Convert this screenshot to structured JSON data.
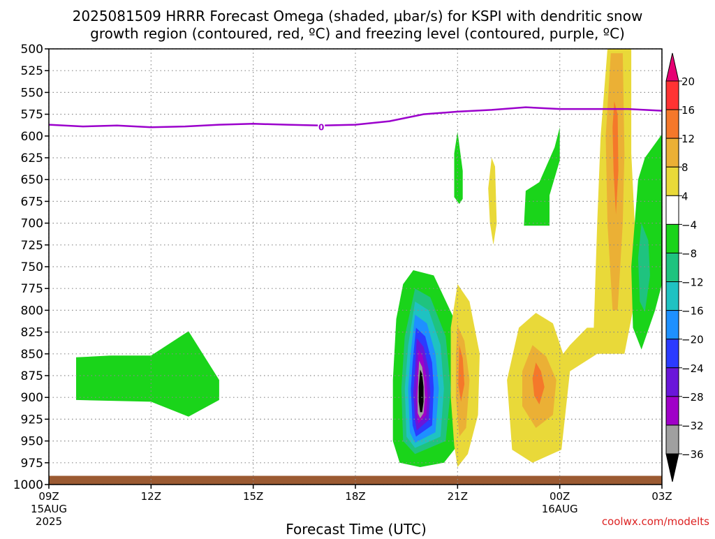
{
  "title_line1": "2025081509 HRRR Forecast Omega (shaded, μbar/s) for KSPI with dendritic snow",
  "title_line2": "growth region (contoured, red, ºC) and freezing level (contoured, purple, ºC)",
  "xlabel": "Forecast Time (UTC)",
  "watermark": "coolwx.com/modelts",
  "colors": {
    "freezing_level": "#9b00cc",
    "ground": "#9b5a32",
    "grid": "#8a8a8a"
  },
  "chart_data": {
    "type": "heatmap",
    "y_axis": {
      "label": "",
      "scale": "pressure (inverted)",
      "range_hPa": [
        1000,
        500
      ],
      "ticks": [
        "500",
        "525",
        "550",
        "575",
        "600",
        "625",
        "650",
        "675",
        "700",
        "725",
        "750",
        "775",
        "800",
        "825",
        "850",
        "875",
        "900",
        "925",
        "950",
        "975",
        "1000"
      ]
    },
    "x_axis": {
      "range_hours_from_09Z": [
        0,
        18
      ],
      "ticks": [
        {
          "h": 0,
          "label": "09Z",
          "sub1": "15AUG",
          "sub2": "2025"
        },
        {
          "h": 3,
          "label": "12Z",
          "sub1": "",
          "sub2": ""
        },
        {
          "h": 6,
          "label": "15Z",
          "sub1": "",
          "sub2": ""
        },
        {
          "h": 9,
          "label": "18Z",
          "sub1": "",
          "sub2": ""
        },
        {
          "h": 12,
          "label": "21Z",
          "sub1": "",
          "sub2": ""
        },
        {
          "h": 15,
          "label": "00Z",
          "sub1": "16AUG",
          "sub2": ""
        },
        {
          "h": 18,
          "label": "03Z",
          "sub1": "",
          "sub2": ""
        }
      ]
    },
    "grid": true,
    "colorbar": {
      "labels": [
        "20",
        "16",
        "12",
        "8",
        "4",
        "-4",
        "-8",
        "-12",
        "-16",
        "-20",
        "-24",
        "-28",
        "-32",
        "-36"
      ],
      "bins": [
        {
          "min": 20,
          "max": null,
          "color": "#e60073"
        },
        {
          "min": 16,
          "max": 20,
          "color": "#ff3333"
        },
        {
          "min": 12,
          "max": 16,
          "color": "#f5782a"
        },
        {
          "min": 8,
          "max": 12,
          "color": "#ebb035"
        },
        {
          "min": 4,
          "max": 8,
          "color": "#e9d939"
        },
        {
          "min": -4,
          "max": 4,
          "color": "#ffffff"
        },
        {
          "min": -8,
          "max": -4,
          "color": "#1ad41a"
        },
        {
          "min": -12,
          "max": -8,
          "color": "#1fc37f"
        },
        {
          "min": -16,
          "max": -12,
          "color": "#1fc2c2"
        },
        {
          "min": -20,
          "max": -16,
          "color": "#1e90ff"
        },
        {
          "min": -24,
          "max": -20,
          "color": "#2b3bff"
        },
        {
          "min": -28,
          "max": -24,
          "color": "#6a16d9"
        },
        {
          "min": -32,
          "max": -28,
          "color": "#a000c8"
        },
        {
          "min": -36,
          "max": -32,
          "color": "#a0a0a0"
        },
        {
          "min": null,
          "max": -36,
          "color": "#000000"
        }
      ]
    },
    "freezing_level": {
      "contour_label": "0",
      "label_at": [
        8.0,
        591
      ],
      "points": [
        [
          0,
          587
        ],
        [
          1,
          589
        ],
        [
          2,
          588
        ],
        [
          3,
          590
        ],
        [
          4,
          589
        ],
        [
          5,
          587
        ],
        [
          6,
          586
        ],
        [
          7,
          587
        ],
        [
          8,
          588
        ],
        [
          9,
          587
        ],
        [
          10,
          583
        ],
        [
          11,
          575
        ],
        [
          12,
          572
        ],
        [
          13,
          570
        ],
        [
          14,
          567
        ],
        [
          15,
          569
        ],
        [
          16,
          569
        ],
        [
          17,
          569
        ],
        [
          18,
          571
        ]
      ]
    },
    "shaded_regions": [
      {
        "name": "low-level-weak-ascent",
        "bin": "-8 to -4",
        "color": "#1ad41a",
        "polygon": [
          [
            0.8,
            854
          ],
          [
            1.8,
            852
          ],
          [
            3.0,
            852
          ],
          [
            4.1,
            824
          ],
          [
            5.0,
            880
          ],
          [
            5.0,
            903
          ],
          [
            4.1,
            922
          ],
          [
            3.0,
            905
          ],
          [
            0.8,
            903
          ]
        ]
      },
      {
        "name": "deep-ascent-outer",
        "bin": "-8 to -4",
        "color": "#1ad41a",
        "polygon": [
          [
            10.7,
            754
          ],
          [
            11.3,
            760
          ],
          [
            11.9,
            810
          ],
          [
            12.1,
            880
          ],
          [
            12.1,
            950
          ],
          [
            11.6,
            975
          ],
          [
            10.9,
            980
          ],
          [
            10.3,
            975
          ],
          [
            10.1,
            950
          ],
          [
            10.1,
            880
          ],
          [
            10.2,
            810
          ],
          [
            10.4,
            770
          ]
        ]
      },
      {
        "name": "deep-ascent-2",
        "bin": "-12 to -8",
        "color": "#1fc37f",
        "polygon": [
          [
            10.75,
            775
          ],
          [
            11.2,
            785
          ],
          [
            11.65,
            830
          ],
          [
            11.8,
            890
          ],
          [
            11.65,
            950
          ],
          [
            10.75,
            965
          ],
          [
            10.4,
            950
          ],
          [
            10.35,
            890
          ],
          [
            10.45,
            830
          ]
        ]
      },
      {
        "name": "deep-ascent-3",
        "bin": "-16 to -12",
        "color": "#1fc2c2",
        "polygon": [
          [
            10.75,
            790
          ],
          [
            11.15,
            800
          ],
          [
            11.5,
            840
          ],
          [
            11.6,
            890
          ],
          [
            11.5,
            945
          ],
          [
            10.75,
            958
          ],
          [
            10.5,
            945
          ],
          [
            10.45,
            890
          ],
          [
            10.55,
            840
          ]
        ]
      },
      {
        "name": "deep-ascent-4",
        "bin": "-20 to -16",
        "color": "#1e90ff",
        "polygon": [
          [
            10.75,
            805
          ],
          [
            11.1,
            815
          ],
          [
            11.35,
            850
          ],
          [
            11.45,
            890
          ],
          [
            11.35,
            940
          ],
          [
            10.75,
            952
          ],
          [
            10.6,
            940
          ],
          [
            10.55,
            890
          ],
          [
            10.62,
            850
          ]
        ]
      },
      {
        "name": "deep-ascent-5",
        "bin": "-24 to -20",
        "color": "#2b3bff",
        "polygon": [
          [
            10.78,
            820
          ],
          [
            11.05,
            830
          ],
          [
            11.25,
            860
          ],
          [
            11.3,
            890
          ],
          [
            11.25,
            932
          ],
          [
            10.78,
            945
          ],
          [
            10.68,
            932
          ],
          [
            10.63,
            890
          ],
          [
            10.68,
            860
          ]
        ]
      },
      {
        "name": "deep-ascent-6",
        "bin": "-28 to -24",
        "color": "#6a16d9",
        "polygon": [
          [
            10.8,
            832
          ],
          [
            11.0,
            842
          ],
          [
            11.15,
            868
          ],
          [
            11.2,
            895
          ],
          [
            11.15,
            926
          ],
          [
            10.8,
            938
          ],
          [
            10.75,
            926
          ],
          [
            10.7,
            895
          ],
          [
            10.75,
            868
          ]
        ]
      },
      {
        "name": "deep-ascent-7",
        "bin": "-32 to -28",
        "color": "#a000c8",
        "polygon": [
          [
            10.85,
            845
          ],
          [
            10.97,
            852
          ],
          [
            11.08,
            875
          ],
          [
            11.12,
            898
          ],
          [
            11.08,
            920
          ],
          [
            10.85,
            930
          ],
          [
            10.8,
            920
          ],
          [
            10.78,
            898
          ],
          [
            10.8,
            875
          ]
        ]
      },
      {
        "name": "deep-ascent-8",
        "bin": "-36 to -32",
        "color": "#a0a0a0",
        "polygon": [
          [
            10.87,
            858
          ],
          [
            10.96,
            865
          ],
          [
            11.02,
            882
          ],
          [
            11.04,
            900
          ],
          [
            11.0,
            918
          ],
          [
            10.9,
            924
          ],
          [
            10.83,
            918
          ],
          [
            10.82,
            900
          ],
          [
            10.84,
            882
          ]
        ]
      },
      {
        "name": "deep-ascent-core",
        "bin": "< -36",
        "color": "#000000",
        "polygon": [
          [
            10.9,
            868
          ],
          [
            10.96,
            873
          ],
          [
            11.0,
            888
          ],
          [
            11.0,
            905
          ],
          [
            10.96,
            917
          ],
          [
            10.9,
            917
          ],
          [
            10.86,
            905
          ],
          [
            10.86,
            888
          ]
        ]
      },
      {
        "name": "mid-descent-a",
        "bin": "4 to 8",
        "color": "#e9d939",
        "polygon": [
          [
            12.0,
            770
          ],
          [
            12.35,
            790
          ],
          [
            12.65,
            850
          ],
          [
            12.6,
            920
          ],
          [
            12.3,
            965
          ],
          [
            12.0,
            980
          ],
          [
            11.9,
            955
          ],
          [
            11.8,
            900
          ],
          [
            11.8,
            820
          ]
        ]
      },
      {
        "name": "mid-descent-a-core",
        "bin": "8 to 12",
        "color": "#ebb035",
        "polygon": [
          [
            12.0,
            818
          ],
          [
            12.2,
            835
          ],
          [
            12.35,
            880
          ],
          [
            12.25,
            935
          ],
          [
            12.05,
            945
          ],
          [
            11.95,
            900
          ],
          [
            11.95,
            850
          ]
        ]
      },
      {
        "name": "mid-descent-a-peak",
        "bin": "12 to 16",
        "color": "#f5782a",
        "polygon": [
          [
            12.05,
            840
          ],
          [
            12.15,
            855
          ],
          [
            12.2,
            885
          ],
          [
            12.1,
            905
          ],
          [
            12.02,
            885
          ]
        ]
      },
      {
        "name": "upper-green-a",
        "bin": "-8 to -4",
        "color": "#1ad41a",
        "polygon": [
          [
            11.9,
            620
          ],
          [
            12.0,
            595
          ],
          [
            12.15,
            640
          ],
          [
            12.15,
            672
          ],
          [
            12.05,
            678
          ],
          [
            11.9,
            670
          ]
        ]
      },
      {
        "name": "upper-yellow-thin",
        "bin": "4 to 8",
        "color": "#e9d939",
        "polygon": [
          [
            13.0,
            625
          ],
          [
            13.1,
            635
          ],
          [
            13.15,
            700
          ],
          [
            13.05,
            725
          ],
          [
            12.95,
            700
          ],
          [
            12.9,
            660
          ]
        ]
      },
      {
        "name": "upper-green-b",
        "bin": "-8 to -4",
        "color": "#1ad41a",
        "polygon": [
          [
            14.0,
            663
          ],
          [
            14.4,
            653
          ],
          [
            14.85,
            613
          ],
          [
            15.0,
            590
          ],
          [
            15.0,
            628
          ],
          [
            14.7,
            668
          ],
          [
            14.7,
            703
          ],
          [
            13.95,
            703
          ]
        ]
      },
      {
        "name": "tall-descent-column",
        "bin": "4 to 8",
        "color": "#e9d939",
        "polygon": [
          [
            16.4,
            500
          ],
          [
            17.1,
            500
          ],
          [
            17.1,
            620
          ],
          [
            17.2,
            700
          ],
          [
            17.15,
            800
          ],
          [
            16.9,
            850
          ],
          [
            16.1,
            850
          ],
          [
            15.3,
            870
          ],
          [
            15.05,
            960
          ],
          [
            14.2,
            975
          ],
          [
            13.6,
            960
          ],
          [
            13.45,
            880
          ],
          [
            13.8,
            820
          ],
          [
            14.3,
            803
          ],
          [
            14.8,
            815
          ],
          [
            15.1,
            850
          ],
          [
            15.3,
            840
          ],
          [
            15.8,
            820
          ],
          [
            16.0,
            820
          ],
          [
            16.1,
            700
          ],
          [
            16.2,
            600
          ]
        ]
      },
      {
        "name": "tall-descent-core",
        "bin": "8 to 12",
        "color": "#ebb035",
        "polygon": [
          [
            16.5,
            505
          ],
          [
            16.85,
            505
          ],
          [
            16.9,
            620
          ],
          [
            16.85,
            700
          ],
          [
            16.7,
            800
          ],
          [
            16.55,
            800
          ],
          [
            16.4,
            700
          ],
          [
            16.35,
            600
          ]
        ]
      },
      {
        "name": "tall-descent-peak",
        "bin": "12 to 16",
        "color": "#f5782a",
        "polygon": [
          [
            16.6,
            560
          ],
          [
            16.7,
            575
          ],
          [
            16.72,
            640
          ],
          [
            16.65,
            690
          ],
          [
            16.58,
            640
          ],
          [
            16.55,
            590
          ]
        ]
      },
      {
        "name": "lower-descent-core",
        "bin": "8 to 12",
        "color": "#ebb035",
        "polygon": [
          [
            14.2,
            840
          ],
          [
            14.6,
            853
          ],
          [
            14.9,
            880
          ],
          [
            14.8,
            920
          ],
          [
            14.3,
            935
          ],
          [
            13.9,
            910
          ],
          [
            13.9,
            870
          ]
        ]
      },
      {
        "name": "lower-descent-peak",
        "bin": "12 to 16",
        "color": "#f5782a",
        "polygon": [
          [
            14.3,
            860
          ],
          [
            14.45,
            870
          ],
          [
            14.55,
            888
          ],
          [
            14.4,
            908
          ],
          [
            14.25,
            898
          ],
          [
            14.2,
            878
          ]
        ]
      },
      {
        "name": "right-green-column",
        "bin": "-8 to -4",
        "color": "#1ad41a",
        "polygon": [
          [
            17.5,
            625
          ],
          [
            18.0,
            598
          ],
          [
            18.0,
            770
          ],
          [
            17.8,
            800
          ],
          [
            17.4,
            845
          ],
          [
            17.15,
            820
          ],
          [
            17.1,
            750
          ],
          [
            17.3,
            650
          ]
        ]
      },
      {
        "name": "right-teal-core",
        "bin": "-12 to -8",
        "color": "#1fc37f",
        "polygon": [
          [
            17.4,
            700
          ],
          [
            17.6,
            720
          ],
          [
            17.65,
            760
          ],
          [
            17.5,
            802
          ],
          [
            17.35,
            790
          ],
          [
            17.3,
            740
          ]
        ]
      }
    ],
    "ground_band": [
      1000,
      990
    ]
  }
}
